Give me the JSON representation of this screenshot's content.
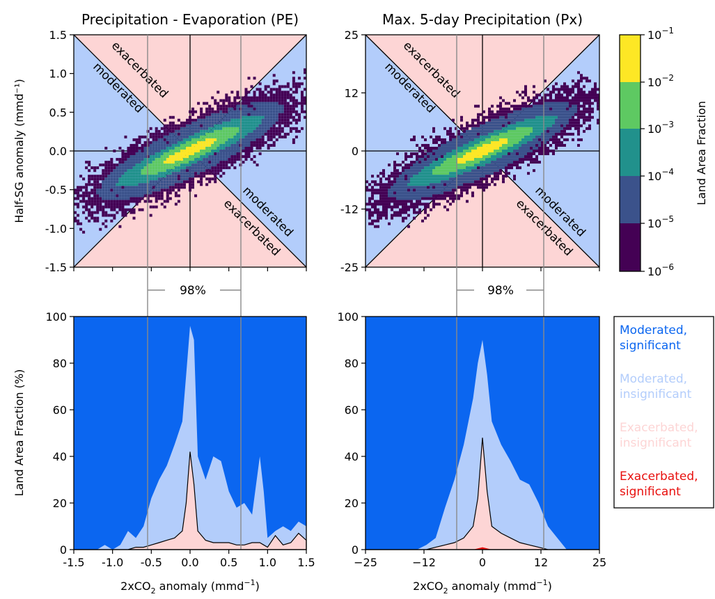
{
  "colors": {
    "moderated_region": "#b3cdfb",
    "exacerbated_region": "#fdd5d5",
    "moderated_significant": "#0b66f0",
    "moderated_insignificant": "#b3cdfb",
    "exacerbated_insignificant": "#fdd5d5",
    "exacerbated_significant": "#e8100e",
    "colormap": [
      "#440154",
      "#3b528b",
      "#21918c",
      "#5ec962",
      "#fde725"
    ]
  },
  "panels": {
    "pe_title": "Precipitation - Evaporation (PE)",
    "px_title": "Max. 5-day Precipitation (Px)",
    "region_labels": {
      "exacerbated": "exacerbated",
      "moderated": "moderated"
    },
    "pct_label": "98%"
  },
  "axes": {
    "ylabel_top": "Half-SG anomaly (mmd⁻¹)",
    "ylabel_bottom": "Land Area Fraction (%)",
    "xlabel_main": "2xCO",
    "xlabel_sub": "2",
    "xlabel_rest": " anomaly (mmd",
    "xlabel_sup": "−1",
    "xlabel_end": ")",
    "pe_x_ticks": [
      "-1.5",
      "-1.0",
      "-0.5",
      "0.0",
      "0.5",
      "1.0",
      "1.5"
    ],
    "px_x_ticks": [
      "−25",
      "−12",
      "0",
      "12",
      "25"
    ],
    "pe_y_ticks": [
      "1.5",
      "1.0",
      "0.5",
      "0.0",
      "-0.5",
      "-1.0",
      "-1.5"
    ],
    "px_y_ticks": [
      "25",
      "12",
      "0",
      "-12",
      "-25"
    ],
    "frac_y_ticks": [
      "100",
      "80",
      "60",
      "40",
      "20",
      "0"
    ]
  },
  "colorbar": {
    "label": "Land Area Fraction",
    "ticks": [
      {
        "base": "10",
        "exp": "−1"
      },
      {
        "base": "10",
        "exp": "−2"
      },
      {
        "base": "10",
        "exp": "−3"
      },
      {
        "base": "10",
        "exp": "−4"
      },
      {
        "base": "10",
        "exp": "−5"
      },
      {
        "base": "10",
        "exp": "−6"
      }
    ]
  },
  "legend": [
    {
      "line1": "Moderated,",
      "line2": "significant",
      "color": "#0b66f0"
    },
    {
      "line1": "Moderated,",
      "line2": "insignificant",
      "color": "#b3cdfb"
    },
    {
      "line1": "Exacerbated,",
      "line2": "insignificant",
      "color": "#fdd5d5"
    },
    {
      "line1": "Exacerbated,",
      "line2": "significant",
      "color": "#e8100e"
    }
  ],
  "chart_data": [
    {
      "type": "heatmap",
      "title": "Precipitation - Evaporation (PE)",
      "ylabel": "Half-SG anomaly (mmd⁻¹)",
      "xlim": [
        -1.5,
        1.5
      ],
      "ylim": [
        -1.5,
        1.5
      ],
      "slope": 0.45,
      "spread": 0.22,
      "pct_lines": [
        -0.55,
        0.65
      ]
    },
    {
      "type": "heatmap",
      "title": "Max. 5-day Precipitation (Px)",
      "xlim": [
        -25,
        25
      ],
      "ylim": [
        -25,
        25
      ],
      "slope": 0.45,
      "spread": 3.6,
      "pct_lines": [
        -5.5,
        13
      ]
    },
    {
      "type": "area",
      "ylabel": "Land Area Fraction (%)",
      "xlabel": "2xCO2 anomaly (mmd-1)",
      "xlim": [
        -1.5,
        1.5
      ],
      "ylim": [
        0,
        100
      ],
      "x": [
        -1.5,
        -1.2,
        -1.1,
        -1.0,
        -0.9,
        -0.8,
        -0.7,
        -0.6,
        -0.5,
        -0.4,
        -0.3,
        -0.2,
        -0.1,
        -0.05,
        0.0,
        0.05,
        0.1,
        0.2,
        0.3,
        0.4,
        0.5,
        0.6,
        0.7,
        0.8,
        0.9,
        0.95,
        1.0,
        1.1,
        1.2,
        1.3,
        1.4,
        1.5
      ],
      "moderated_insignificant_top": [
        0,
        0,
        2,
        0,
        2,
        8,
        5,
        10,
        22,
        30,
        36,
        45,
        55,
        75,
        96,
        90,
        40,
        30,
        40,
        38,
        25,
        18,
        20,
        15,
        40,
        25,
        5,
        8,
        10,
        8,
        12,
        10
      ],
      "exacerbated_insignificant_top": [
        0,
        0,
        0,
        0,
        0,
        0,
        1,
        1,
        2,
        3,
        4,
        5,
        8,
        20,
        42,
        28,
        8,
        4,
        3,
        3,
        3,
        2,
        2,
        3,
        3,
        2,
        1,
        6,
        2,
        3,
        7,
        4
      ],
      "exacerbated_significant_top": [
        0,
        0,
        0,
        0,
        0,
        0,
        0,
        0,
        0,
        0,
        0,
        0,
        0,
        0,
        0,
        0,
        0,
        0,
        0,
        0,
        0,
        0,
        0,
        0,
        0,
        0,
        0,
        0,
        0,
        0,
        0,
        0
      ]
    },
    {
      "type": "area",
      "xlim": [
        -25,
        25
      ],
      "ylim": [
        0,
        100
      ],
      "x": [
        -25,
        -14,
        -12,
        -10,
        -8,
        -6,
        -4,
        -2,
        -1,
        0,
        1,
        2,
        4,
        6,
        8,
        10,
        12,
        14,
        16,
        18,
        25
      ],
      "moderated_insignificant_top": [
        0,
        0,
        2,
        5,
        18,
        30,
        45,
        65,
        80,
        90,
        75,
        55,
        45,
        38,
        30,
        28,
        20,
        10,
        5,
        0,
        0
      ],
      "exacerbated_insignificant_top": [
        0,
        0,
        0,
        1,
        2,
        3,
        5,
        10,
        22,
        48,
        25,
        10,
        7,
        5,
        3,
        2,
        1,
        0,
        0,
        0,
        0
      ],
      "exacerbated_significant_top": [
        0,
        0,
        0,
        0,
        0,
        0,
        0,
        0,
        0.5,
        1,
        0.5,
        0,
        0,
        0,
        0,
        0,
        0,
        0,
        0,
        0,
        0
      ]
    }
  ]
}
